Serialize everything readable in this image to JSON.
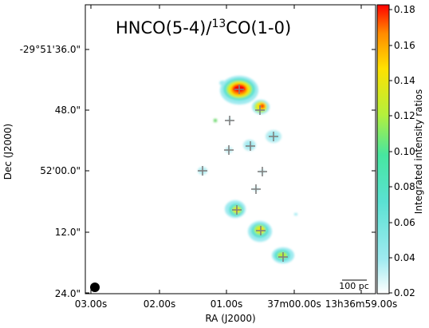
{
  "title": {
    "prefix": "HNCO(5-4)/",
    "sup": "13",
    "suffix": "CO(1-0)"
  },
  "axes": {
    "xlabel": "RA (J2000)",
    "ylabel": "Dec (J2000)",
    "xticks": [
      "03.00s",
      "02.00s",
      "01.00s",
      "37m00.00s",
      "13h36m59.00s"
    ],
    "yticks": [
      "-29°51'36.0\"",
      "48.0\"",
      "52'00.0\"",
      "12.0\"",
      "24.0\""
    ]
  },
  "colorbar": {
    "label": "Integrated intensity ratios",
    "ticks": [
      "0.18",
      "0.16",
      "0.14",
      "0.12",
      "0.10",
      "0.08",
      "0.06",
      "0.04",
      "0.02"
    ],
    "colors": [
      "#ff0000",
      "#ff8c00",
      "#ffe100",
      "#b4f03c",
      "#46e6a0",
      "#5ae1d2",
      "#9feaf0",
      "#ffffff"
    ]
  },
  "scalebar": {
    "label": "100 pc"
  },
  "beam": {
    "color": "#000000"
  }
}
